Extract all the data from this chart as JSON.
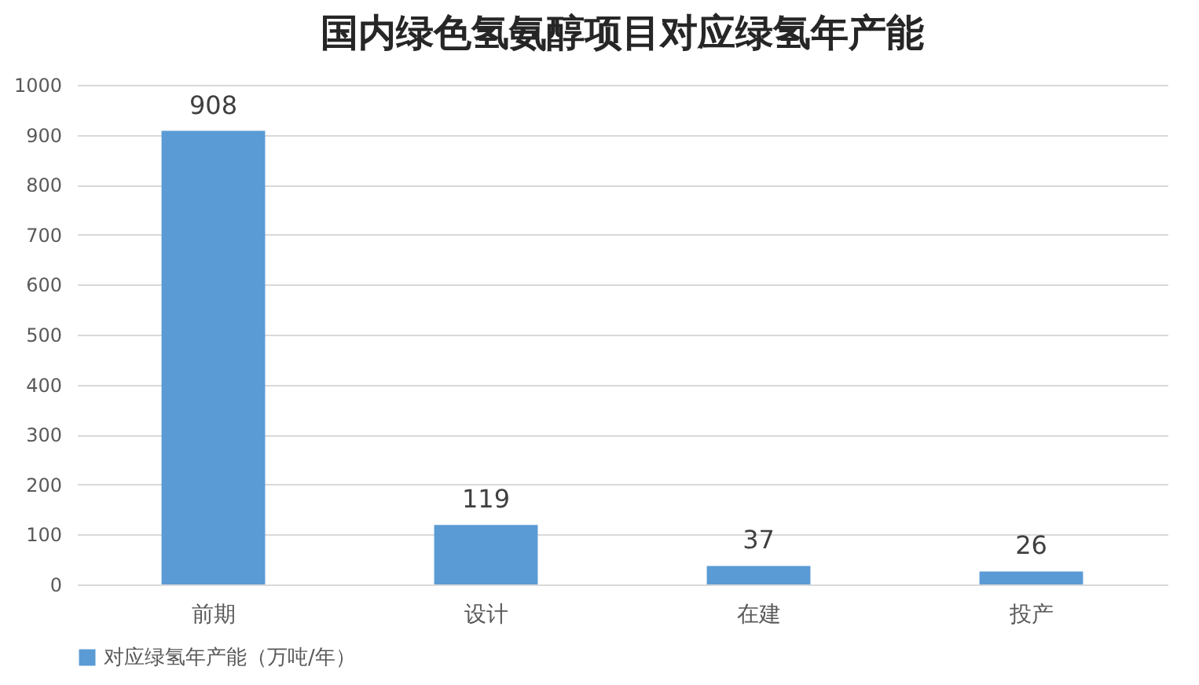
{
  "chart_data": {
    "type": "bar",
    "title": "国内绿色氢氨醇项目对应绿氢年产能",
    "categories": [
      "前期",
      "设计",
      "在建",
      "投产"
    ],
    "series": [
      {
        "name": "对应绿氢年产能（万吨/年）",
        "color": "#5b9bd5",
        "values": [
          908,
          119,
          37,
          26
        ]
      }
    ],
    "ylim": [
      0,
      1000
    ],
    "yticks": [
      0,
      100,
      200,
      300,
      400,
      500,
      600,
      700,
      800,
      900,
      1000
    ],
    "grid": "y",
    "legend": "bottom",
    "data_labels": true
  }
}
